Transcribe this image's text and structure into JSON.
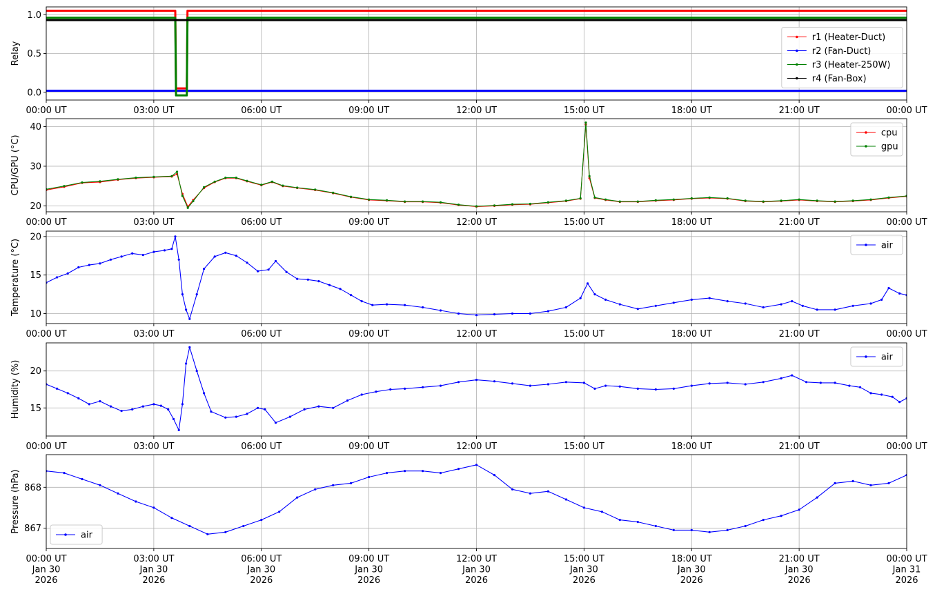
{
  "chart_data": [
    {
      "type": "line",
      "ylabel": "Relay",
      "ylim": [
        -0.1,
        1.1
      ],
      "yticks": [
        0.0,
        0.5,
        1.0
      ],
      "ytick_labels": [
        "0.0",
        "0.5",
        "1.0"
      ],
      "xlim": [
        0,
        24
      ],
      "xtick_labels": [
        "00:00 UT",
        "03:00 UT",
        "06:00 UT",
        "09:00 UT",
        "12:00 UT",
        "15:00 UT",
        "18:00 UT",
        "21:00 UT",
        "00:00 UT"
      ],
      "grid": true,
      "legend": "right",
      "series": [
        {
          "name": "r1 (Heater-Duct)",
          "color": "#ff0000",
          "x": [
            0,
            3.6,
            3.62,
            3.92,
            3.94,
            24
          ],
          "y": [
            1.05,
            1.05,
            0.05,
            0.05,
            1.05,
            1.05
          ]
        },
        {
          "name": "r2 (Fan-Duct)",
          "color": "#0000ff",
          "x": [
            0,
            24
          ],
          "y": [
            0.02,
            0.02
          ]
        },
        {
          "name": "r3 (Heater-250W)",
          "color": "#008000",
          "x": [
            0,
            3.6,
            3.62,
            3.92,
            3.94,
            24
          ],
          "y": [
            0.96,
            0.96,
            -0.04,
            -0.04,
            0.96,
            0.96
          ]
        },
        {
          "name": "r4 (Fan-Box)",
          "color": "#000000",
          "x": [
            0,
            24
          ],
          "y": [
            0.93,
            0.93
          ]
        }
      ]
    },
    {
      "type": "line",
      "ylabel": "CPU/GPU (°C)",
      "ylim": [
        18.5,
        42
      ],
      "yticks": [
        20,
        30,
        40
      ],
      "ytick_labels": [
        "20",
        "30",
        "40"
      ],
      "xlim": [
        0,
        24
      ],
      "xtick_labels": [
        "00:00 UT",
        "03:00 UT",
        "06:00 UT",
        "09:00 UT",
        "12:00 UT",
        "15:00 UT",
        "18:00 UT",
        "21:00 UT",
        "00:00 UT"
      ],
      "grid": true,
      "legend": "top-right",
      "series": [
        {
          "name": "cpu",
          "color": "#ff0000",
          "x": [
            0,
            0.5,
            1,
            1.5,
            2,
            2.5,
            3,
            3.5,
            3.65,
            3.8,
            3.95,
            4.1,
            4.4,
            4.7,
            5,
            5.3,
            5.6,
            6,
            6.3,
            6.6,
            7,
            7.5,
            8,
            8.5,
            9,
            9.5,
            10,
            10.5,
            11,
            11.5,
            12,
            12.5,
            13,
            13.5,
            14,
            14.5,
            14.9,
            15.05,
            15.15,
            15.3,
            15.6,
            16,
            16.5,
            17,
            17.5,
            18,
            18.5,
            19,
            19.5,
            20,
            20.5,
            21,
            21.5,
            22,
            22.5,
            23,
            23.5,
            24
          ],
          "y": [
            24,
            24.8,
            25.8,
            26,
            26.6,
            27,
            27.2,
            27.4,
            28,
            23,
            19.8,
            21.5,
            24.5,
            26,
            27,
            27,
            26.2,
            25.2,
            26,
            25,
            24.5,
            24,
            23.2,
            22.2,
            21.5,
            21.3,
            21,
            21,
            20.8,
            20.2,
            19.8,
            20,
            20.3,
            20.4,
            20.8,
            21.2,
            21.8,
            40.5,
            27,
            22,
            21.5,
            21,
            21,
            21.3,
            21.5,
            21.8,
            22,
            21.8,
            21.2,
            21,
            21.2,
            21.5,
            21.2,
            21,
            21.2,
            21.5,
            22,
            22.4
          ]
        },
        {
          "name": "gpu",
          "color": "#008000",
          "x": [
            0,
            0.5,
            1,
            1.5,
            2,
            2.5,
            3,
            3.5,
            3.65,
            3.8,
            3.95,
            4.1,
            4.4,
            4.7,
            5,
            5.3,
            5.6,
            6,
            6.3,
            6.6,
            7,
            7.5,
            8,
            8.5,
            9,
            9.5,
            10,
            10.5,
            11,
            11.5,
            12,
            12.5,
            13,
            13.5,
            14,
            14.5,
            14.9,
            15.05,
            15.15,
            15.3,
            15.6,
            16,
            16.5,
            17,
            17.5,
            18,
            18.5,
            19,
            19.5,
            20,
            20.5,
            21,
            21.5,
            22,
            22.5,
            23,
            23.5,
            24
          ],
          "y": [
            24.2,
            25,
            25.9,
            26.2,
            26.7,
            27.1,
            27.3,
            27.5,
            28.6,
            22.5,
            19.5,
            21.2,
            24.7,
            26.1,
            27.1,
            27.1,
            26.3,
            25.3,
            26.1,
            25.1,
            24.6,
            24.1,
            23.3,
            22.3,
            21.6,
            21.4,
            21.1,
            21.1,
            20.9,
            20.3,
            19.9,
            20.1,
            20.4,
            20.5,
            20.9,
            21.3,
            21.9,
            41,
            27.5,
            22.1,
            21.6,
            21.1,
            21.1,
            21.4,
            21.6,
            21.9,
            22.1,
            21.9,
            21.3,
            21.1,
            21.3,
            21.6,
            21.3,
            21.1,
            21.3,
            21.6,
            22.1,
            22.5
          ]
        }
      ]
    },
    {
      "type": "line",
      "ylabel": "Temperature (°C)",
      "ylim": [
        8.7,
        20.7
      ],
      "yticks": [
        10,
        15,
        20
      ],
      "ytick_labels": [
        "10",
        "15",
        "20"
      ],
      "xlim": [
        0,
        24
      ],
      "xtick_labels": [
        "00:00 UT",
        "03:00 UT",
        "06:00 UT",
        "09:00 UT",
        "12:00 UT",
        "15:00 UT",
        "18:00 UT",
        "21:00 UT",
        "00:00 UT"
      ],
      "grid": true,
      "legend": "top-right",
      "series": [
        {
          "name": "air",
          "color": "#0000ff",
          "x": [
            0,
            0.3,
            0.6,
            0.9,
            1.2,
            1.5,
            1.8,
            2.1,
            2.4,
            2.7,
            3,
            3.3,
            3.5,
            3.6,
            3.7,
            3.8,
            3.9,
            4,
            4.2,
            4.4,
            4.7,
            5,
            5.3,
            5.6,
            5.9,
            6.2,
            6.4,
            6.7,
            7,
            7.3,
            7.6,
            7.9,
            8.2,
            8.5,
            8.8,
            9.1,
            9.5,
            10,
            10.5,
            11,
            11.5,
            12,
            12.5,
            13,
            13.5,
            14,
            14.5,
            14.9,
            15.1,
            15.3,
            15.6,
            16,
            16.5,
            17,
            17.5,
            18,
            18.5,
            19,
            19.5,
            20,
            20.5,
            20.8,
            21.1,
            21.5,
            22,
            22.5,
            23,
            23.3,
            23.5,
            23.8,
            24
          ],
          "y": [
            14,
            14.7,
            15.2,
            16,
            16.3,
            16.5,
            17,
            17.4,
            17.8,
            17.6,
            18,
            18.2,
            18.4,
            20,
            17,
            12.5,
            10.5,
            9.3,
            12.5,
            15.8,
            17.4,
            17.9,
            17.5,
            16.6,
            15.5,
            15.7,
            16.8,
            15.4,
            14.5,
            14.4,
            14.2,
            13.7,
            13.2,
            12.4,
            11.6,
            11.1,
            11.2,
            11.1,
            10.8,
            10.4,
            10,
            9.8,
            9.9,
            10,
            10,
            10.3,
            10.8,
            12,
            13.9,
            12.5,
            11.8,
            11.2,
            10.6,
            11,
            11.4,
            11.8,
            12,
            11.6,
            11.3,
            10.8,
            11.2,
            11.6,
            11,
            10.5,
            10.5,
            11,
            11.3,
            11.8,
            13.3,
            12.6,
            12.4
          ]
        }
      ]
    },
    {
      "type": "line",
      "ylabel": "Humidity (%)",
      "ylim": [
        11.2,
        23.8
      ],
      "yticks": [
        15,
        20
      ],
      "ytick_labels": [
        "15",
        "20"
      ],
      "xlim": [
        0,
        24
      ],
      "xtick_labels": [
        "00:00 UT",
        "03:00 UT",
        "06:00 UT",
        "09:00 UT",
        "12:00 UT",
        "15:00 UT",
        "18:00 UT",
        "21:00 UT",
        "00:00 UT"
      ],
      "grid": true,
      "legend": "top-right",
      "series": [
        {
          "name": "air",
          "color": "#0000ff",
          "x": [
            0,
            0.3,
            0.6,
            0.9,
            1.2,
            1.5,
            1.8,
            2.1,
            2.4,
            2.7,
            3,
            3.2,
            3.4,
            3.55,
            3.7,
            3.8,
            3.9,
            4,
            4.2,
            4.4,
            4.6,
            5,
            5.3,
            5.6,
            5.9,
            6.1,
            6.4,
            6.8,
            7.2,
            7.6,
            8,
            8.4,
            8.8,
            9.2,
            9.6,
            10,
            10.5,
            11,
            11.5,
            12,
            12.5,
            13,
            13.5,
            14,
            14.5,
            15,
            15.3,
            15.6,
            16,
            16.5,
            17,
            17.5,
            18,
            18.5,
            19,
            19.5,
            20,
            20.5,
            20.8,
            21.2,
            21.6,
            22,
            22.4,
            22.7,
            23,
            23.3,
            23.6,
            23.8,
            24
          ],
          "y": [
            18.2,
            17.6,
            17,
            16.3,
            15.5,
            15.9,
            15.2,
            14.6,
            14.8,
            15.2,
            15.5,
            15.3,
            14.8,
            13.5,
            12,
            15.5,
            21,
            23.2,
            20,
            17,
            14.5,
            13.7,
            13.8,
            14.2,
            15,
            14.8,
            13,
            13.8,
            14.8,
            15.2,
            15,
            16,
            16.8,
            17.2,
            17.5,
            17.6,
            17.8,
            18,
            18.5,
            18.8,
            18.6,
            18.3,
            18,
            18.2,
            18.5,
            18.4,
            17.6,
            18,
            17.9,
            17.6,
            17.5,
            17.6,
            18,
            18.3,
            18.4,
            18.2,
            18.5,
            19,
            19.4,
            18.5,
            18.4,
            18.4,
            18,
            17.8,
            17,
            16.8,
            16.5,
            15.8,
            16.3
          ]
        }
      ]
    },
    {
      "type": "line",
      "ylabel": "Pressure (hPa)",
      "ylim": [
        866.5,
        868.8
      ],
      "yticks": [
        867,
        868
      ],
      "ytick_labels": [
        "867",
        "868"
      ],
      "xlim": [
        0,
        24
      ],
      "xtick_labels": [
        "00:00 UT\nJan 30\n2026",
        "03:00 UT\nJan 30\n2026",
        "06:00 UT\nJan 30\n2026",
        "09:00 UT\nJan 30\n2026",
        "12:00 UT\nJan 30\n2026",
        "15:00 UT\nJan 30\n2026",
        "18:00 UT\nJan 30\n2026",
        "21:00 UT\nJan 30\n2026",
        "00:00 UT\nJan 31\n2026"
      ],
      "grid": true,
      "legend": "bottom-left",
      "series": [
        {
          "name": "air",
          "color": "#0000ff",
          "x": [
            0,
            0.5,
            1,
            1.5,
            2,
            2.5,
            3,
            3.5,
            4,
            4.5,
            5,
            5.5,
            6,
            6.5,
            7,
            7.5,
            8,
            8.5,
            9,
            9.5,
            10,
            10.5,
            11,
            11.5,
            12,
            12.5,
            13,
            13.5,
            14,
            14.5,
            15,
            15.5,
            16,
            16.5,
            17,
            17.5,
            18,
            18.5,
            19,
            19.5,
            20,
            20.5,
            21,
            21.5,
            22,
            22.5,
            23,
            23.5,
            24
          ],
          "y": [
            868.4,
            868.35,
            868.2,
            868.05,
            867.85,
            867.65,
            867.5,
            867.25,
            867.05,
            866.85,
            866.9,
            867.05,
            867.2,
            867.4,
            867.75,
            867.95,
            868.05,
            868.1,
            868.25,
            868.35,
            868.4,
            868.4,
            868.35,
            868.45,
            868.55,
            868.3,
            867.95,
            867.85,
            867.9,
            867.7,
            867.5,
            867.4,
            867.2,
            867.15,
            867.05,
            866.95,
            866.95,
            866.9,
            866.95,
            867.05,
            867.2,
            867.3,
            867.45,
            867.75,
            868.1,
            868.15,
            868.05,
            868.1,
            868.3
          ]
        }
      ]
    }
  ]
}
